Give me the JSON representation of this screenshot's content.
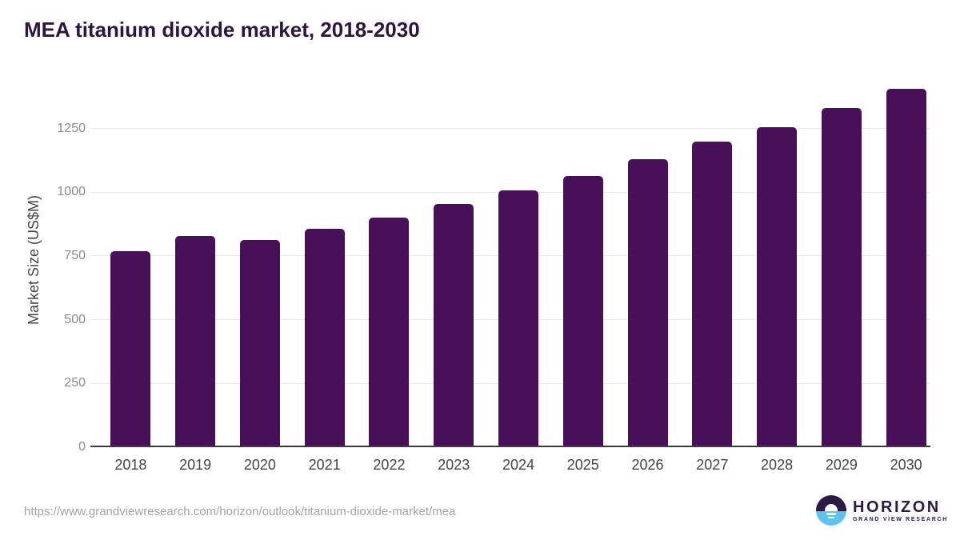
{
  "page": {
    "title": "MEA titanium dioxide market, 2018-2030"
  },
  "footer": {
    "source_url": "https://www.grandviewresearch.com/horizon/outlook/titanium-dioxide-market/mea",
    "logo": {
      "brand": "HORIZON",
      "sub_brand": "GRAND VIEW RESEARCH",
      "icon": "horizon-sun-over-water-icon"
    }
  },
  "colors": {
    "bar": "#471059",
    "title_text": "#2e1540",
    "axis_label_text": "#454545",
    "y_tick_text": "#8a8a8a",
    "x_tick_text": "#444444",
    "gridline": "#e8e8e8",
    "axis_line": "#3a3a40",
    "url_text": "#a3a3a3",
    "logo_purple": "#2c1a45",
    "logo_blue": "#5bc3ef"
  },
  "chart_data": {
    "type": "bar",
    "title": "MEA titanium dioxide market, 2018-2030",
    "xlabel": "",
    "ylabel": "Market Size (US$M)",
    "categories": [
      "2018",
      "2019",
      "2020",
      "2021",
      "2022",
      "2023",
      "2024",
      "2025",
      "2026",
      "2027",
      "2028",
      "2029",
      "2030"
    ],
    "values": [
      770,
      827,
      812,
      857,
      901,
      953,
      1007,
      1065,
      1130,
      1197,
      1256,
      1330,
      1405
    ],
    "yticks": [
      0,
      250,
      500,
      750,
      1000,
      1250
    ],
    "ylim": [
      0,
      1440
    ],
    "grid": "horizontal",
    "legend": "none",
    "bar_corner_radius": "rounded-top"
  }
}
